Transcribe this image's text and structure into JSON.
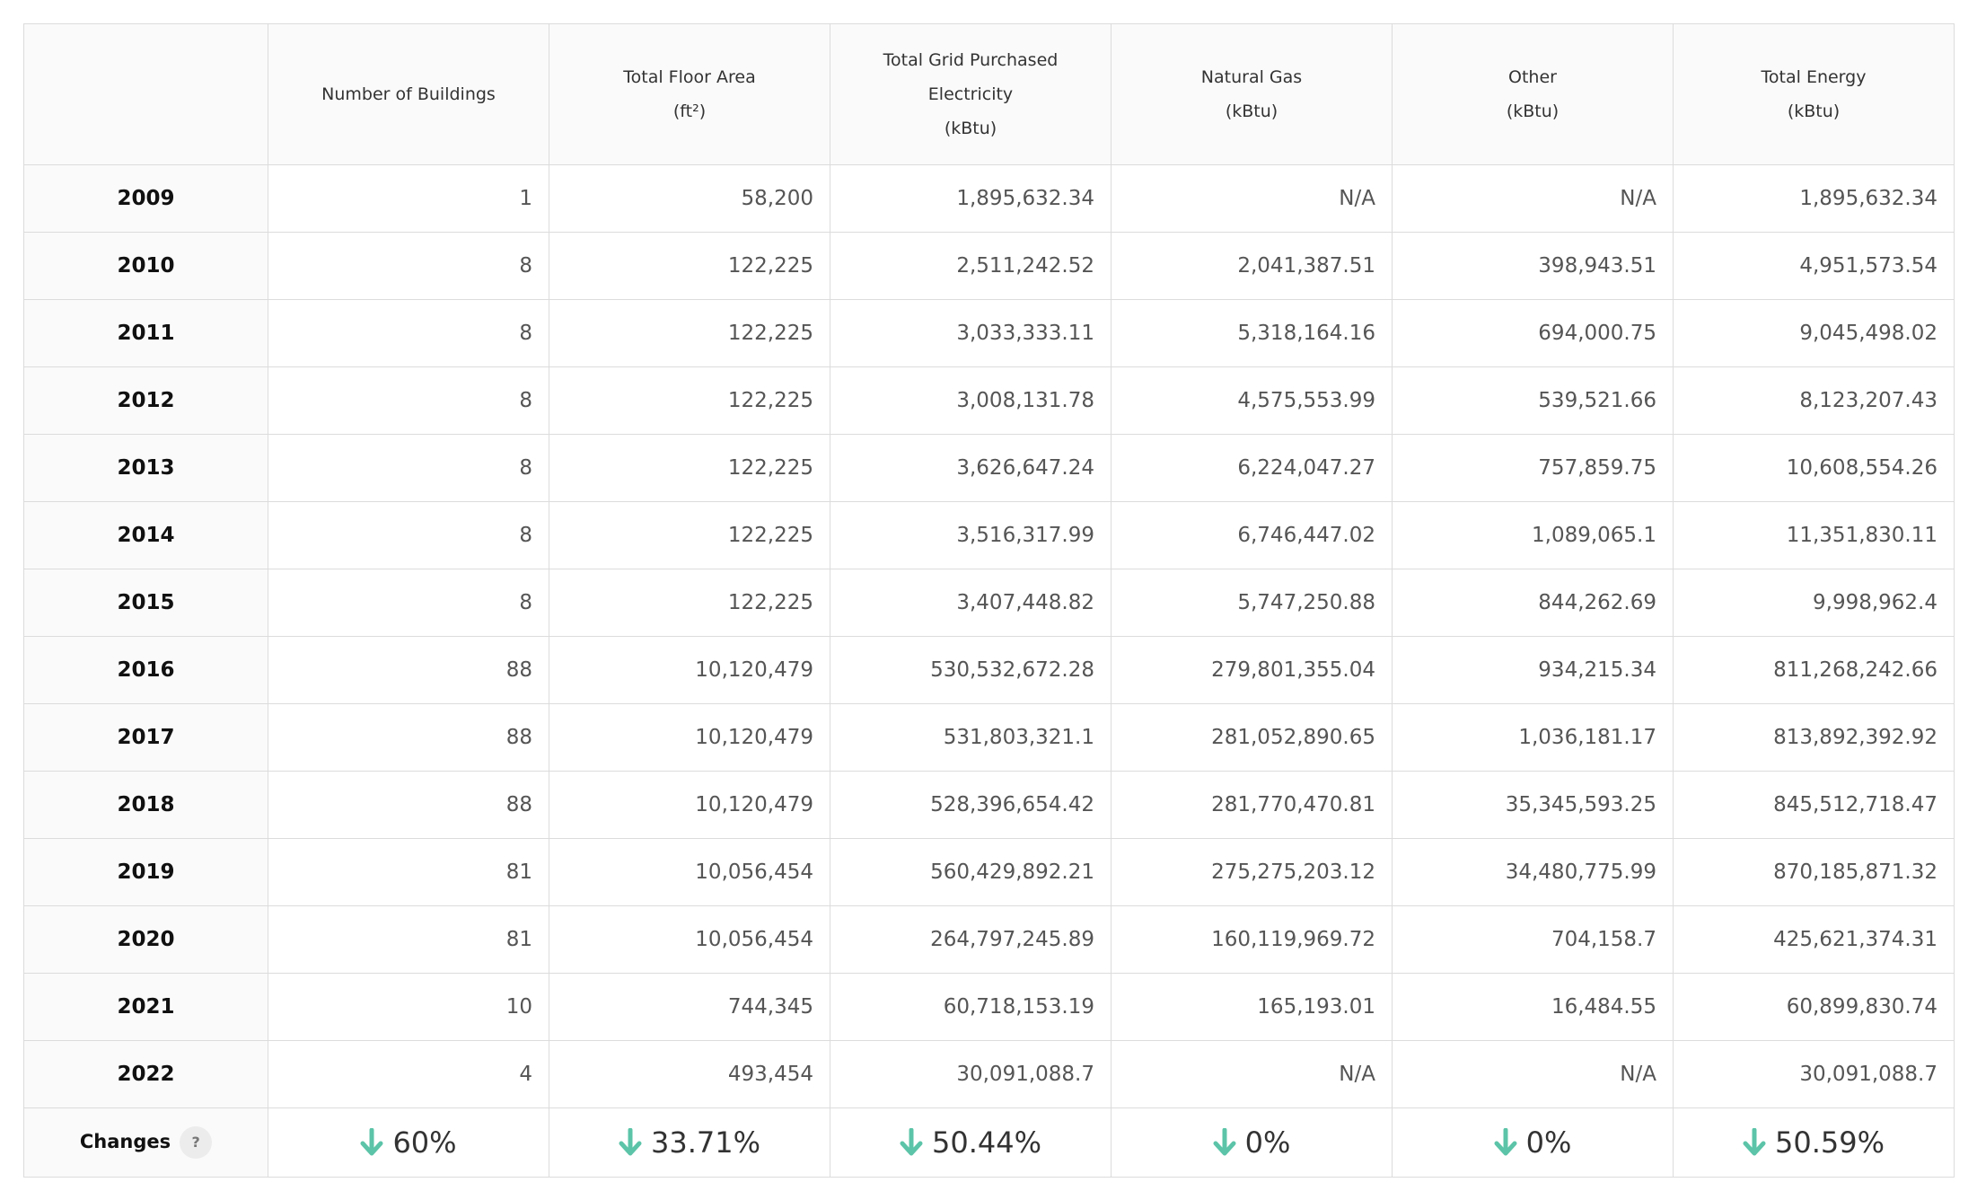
{
  "table": {
    "headers": [
      {
        "lines": [
          ""
        ]
      },
      {
        "lines": [
          "Number of Buildings"
        ]
      },
      {
        "lines": [
          "Total Floor Area",
          "(ft²)"
        ]
      },
      {
        "lines": [
          "Total Grid Purchased",
          "Electricity",
          "(kBtu)"
        ]
      },
      {
        "lines": [
          "Natural Gas",
          "(kBtu)"
        ]
      },
      {
        "lines": [
          "Other",
          "(kBtu)"
        ]
      },
      {
        "lines": [
          "Total Energy",
          "(kBtu)"
        ]
      }
    ],
    "rows": [
      [
        "2009",
        "1",
        "58,200",
        "1,895,632.34",
        "N/A",
        "N/A",
        "1,895,632.34"
      ],
      [
        "2010",
        "8",
        "122,225",
        "2,511,242.52",
        "2,041,387.51",
        "398,943.51",
        "4,951,573.54"
      ],
      [
        "2011",
        "8",
        "122,225",
        "3,033,333.11",
        "5,318,164.16",
        "694,000.75",
        "9,045,498.02"
      ],
      [
        "2012",
        "8",
        "122,225",
        "3,008,131.78",
        "4,575,553.99",
        "539,521.66",
        "8,123,207.43"
      ],
      [
        "2013",
        "8",
        "122,225",
        "3,626,647.24",
        "6,224,047.27",
        "757,859.75",
        "10,608,554.26"
      ],
      [
        "2014",
        "8",
        "122,225",
        "3,516,317.99",
        "6,746,447.02",
        "1,089,065.1",
        "11,351,830.11"
      ],
      [
        "2015",
        "8",
        "122,225",
        "3,407,448.82",
        "5,747,250.88",
        "844,262.69",
        "9,998,962.4"
      ],
      [
        "2016",
        "88",
        "10,120,479",
        "530,532,672.28",
        "279,801,355.04",
        "934,215.34",
        "811,268,242.66"
      ],
      [
        "2017",
        "88",
        "10,120,479",
        "531,803,321.1",
        "281,052,890.65",
        "1,036,181.17",
        "813,892,392.92"
      ],
      [
        "2018",
        "88",
        "10,120,479",
        "528,396,654.42",
        "281,770,470.81",
        "35,345,593.25",
        "845,512,718.47"
      ],
      [
        "2019",
        "81",
        "10,056,454",
        "560,429,892.21",
        "275,275,203.12",
        "34,480,775.99",
        "870,185,871.32"
      ],
      [
        "2020",
        "81",
        "10,056,454",
        "264,797,245.89",
        "160,119,969.72",
        "704,158.7",
        "425,621,374.31"
      ],
      [
        "2021",
        "10",
        "744,345",
        "60,718,153.19",
        "165,193.01",
        "16,484.55",
        "60,899,830.74"
      ],
      [
        "2022",
        "4",
        "493,454",
        "30,091,088.7",
        "N/A",
        "N/A",
        "30,091,088.7"
      ]
    ],
    "changes": {
      "label": "Changes",
      "help_symbol": "?",
      "arrow_color": "#5cc4a8",
      "icon": "arrow-down-icon",
      "values": [
        "60%",
        "33.71%",
        "50.44%",
        "0%",
        "0%",
        "50.59%"
      ]
    }
  }
}
